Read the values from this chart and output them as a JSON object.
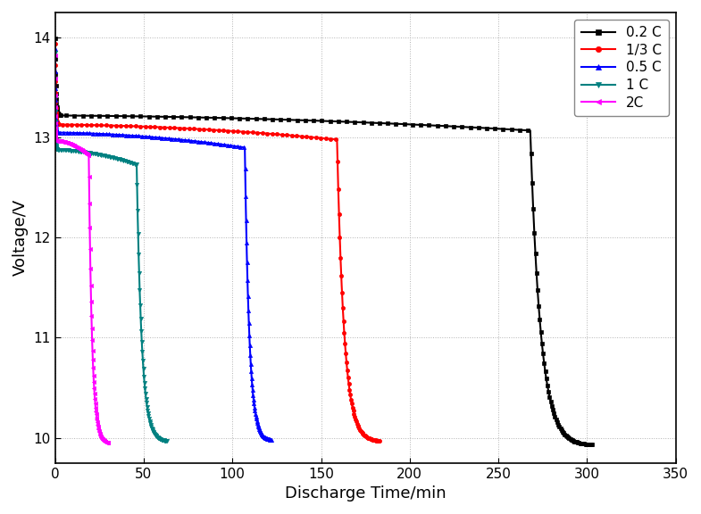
{
  "title": "",
  "xlabel": "Discharge Time/min",
  "ylabel": "Voltage/V",
  "xlim": [
    0,
    350
  ],
  "ylim": [
    9.75,
    14.25
  ],
  "xticks": [
    0,
    50,
    100,
    150,
    200,
    250,
    300,
    350
  ],
  "yticks": [
    10,
    11,
    12,
    13,
    14
  ],
  "grid": true,
  "series": [
    {
      "label": "0.2 C",
      "color": "#000000",
      "marker": "s",
      "end_time": 303,
      "peak_v": 13.99,
      "plateau_v": 13.22,
      "plateau_end": 268,
      "end_v": 9.93,
      "initial_drop_time": 3.0
    },
    {
      "label": "1/3 C",
      "color": "#ff0000",
      "marker": "o",
      "end_time": 183,
      "peak_v": 13.94,
      "plateau_v": 13.13,
      "plateau_end": 159,
      "end_v": 9.97,
      "initial_drop_time": 2.0
    },
    {
      "label": "0.5 C",
      "color": "#0000ff",
      "marker": "^",
      "end_time": 122,
      "peak_v": 13.88,
      "plateau_v": 13.05,
      "plateau_end": 107,
      "end_v": 9.98,
      "initial_drop_time": 1.5
    },
    {
      "label": "1 C",
      "color": "#008080",
      "marker": "v",
      "end_time": 63,
      "peak_v": 13.85,
      "plateau_v": 12.88,
      "plateau_end": 46,
      "end_v": 9.97,
      "initial_drop_time": 1.0
    },
    {
      "label": "2C",
      "color": "#ff00ff",
      "marker": "<",
      "end_time": 30,
      "peak_v": 13.82,
      "plateau_v": 12.97,
      "plateau_end": 19,
      "end_v": 9.95,
      "initial_drop_time": 0.6
    }
  ],
  "legend_loc": "upper right",
  "background_color": "#ffffff",
  "markersize": 3,
  "linewidth": 1.5
}
